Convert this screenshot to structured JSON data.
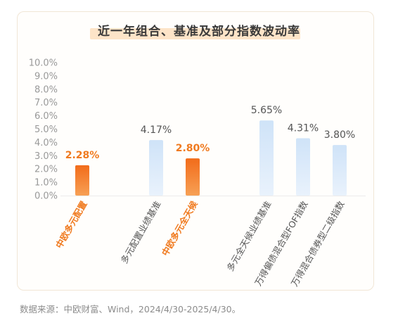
{
  "title": "近一年组合、基准及部分指数波动率",
  "footer": "数据来源：中欧财富、Wind，2024/4/30-2025/4/30。",
  "colors": {
    "highlight": "#f07a1f",
    "normal": "#d6e8fa",
    "axis_text": "#999999",
    "label_text": "#555555"
  },
  "chart_data": {
    "type": "bar",
    "title": "近一年组合、基准及部分指数波动率",
    "ylim": [
      0,
      10
    ],
    "yticks": [
      "0.0%",
      "1.0%",
      "2.0%",
      "3.0%",
      "4.0%",
      "5.0%",
      "6.0%",
      "7.0%",
      "8.0%",
      "9.0%",
      "10.0%"
    ],
    "categories": [
      "中欧多元配置",
      "多元配置业绩基准",
      "中欧多元全天候",
      "多元全天候业绩基准",
      "万得偏债混合型FOF指数",
      "万得混合债券型二级指数"
    ],
    "values": [
      2.28,
      4.17,
      2.8,
      5.65,
      4.31,
      3.8
    ],
    "labels": [
      "2.28%",
      "4.17%",
      "2.80%",
      "5.65%",
      "4.31%",
      "3.80%"
    ],
    "highlight": [
      true,
      false,
      true,
      false,
      false,
      false
    ],
    "grid": false,
    "legend": "none"
  }
}
